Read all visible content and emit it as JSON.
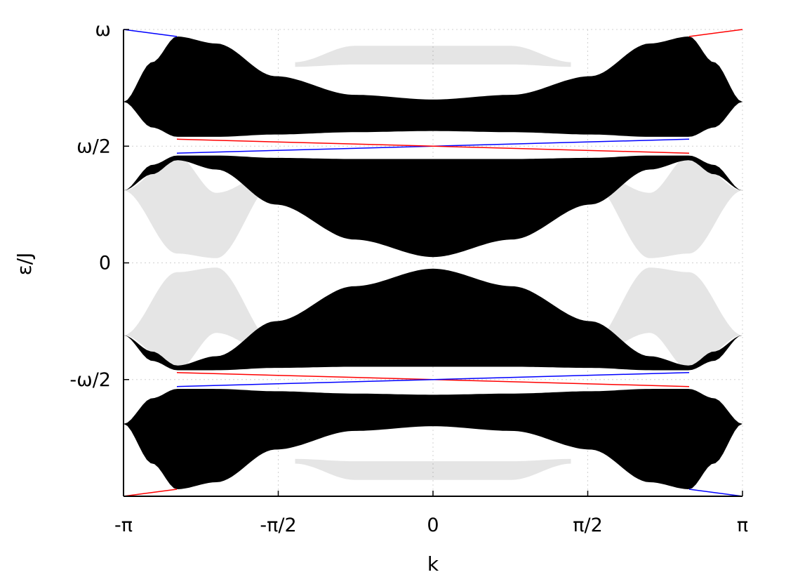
{
  "chart_data": {
    "type": "line",
    "title": "",
    "xlabel": "k",
    "ylabel": "ε/J",
    "xlim": [
      -3.14159,
      3.14159
    ],
    "ylim": [
      -1,
      1
    ],
    "x_unit_note": "",
    "grid": true,
    "x_ticks": [
      {
        "value": -3.14159,
        "label": "-π"
      },
      {
        "value": -1.5708,
        "label": "-π/2"
      },
      {
        "value": 0,
        "label": "0"
      },
      {
        "value": 1.5708,
        "label": "π/2"
      },
      {
        "value": 3.14159,
        "label": "π"
      }
    ],
    "y_ticks": [
      {
        "value": 1,
        "label": "ω"
      },
      {
        "value": 0.5,
        "label": "ω/2"
      },
      {
        "value": 0,
        "label": "0"
      },
      {
        "value": -0.5,
        "label": "-ω/2"
      }
    ],
    "colors": {
      "bulk": "#000000",
      "edge_red": "#ff0000",
      "edge_blue": "#0000ff",
      "grid": "#d0d0d0"
    },
    "bulk_bands": [
      {
        "id": "upper",
        "k": [
          -3.14159,
          -2.85,
          -2.6,
          -2.2,
          -1.6,
          -0.8,
          0,
          0.8,
          1.6,
          2.2,
          2.6,
          2.85,
          3.14159
        ],
        "top": [
          0.69,
          0.86,
          0.97,
          0.94,
          0.8,
          0.72,
          0.7,
          0.72,
          0.8,
          0.94,
          0.97,
          0.86,
          0.69
        ],
        "bottom": [
          0.69,
          0.58,
          0.54,
          0.54,
          0.55,
          0.56,
          0.565,
          0.56,
          0.55,
          0.54,
          0.54,
          0.58,
          0.69
        ]
      },
      {
        "id": "upper-middle",
        "k": [
          -3.14159,
          -2.85,
          -2.6,
          -2.2,
          -1.6,
          -0.8,
          0,
          0.8,
          1.6,
          2.2,
          2.6,
          2.85,
          3.14159
        ],
        "top": [
          0.31,
          0.42,
          0.46,
          0.46,
          0.45,
          0.445,
          0.445,
          0.445,
          0.45,
          0.46,
          0.46,
          0.42,
          0.31
        ],
        "bottom": [
          0.31,
          0.38,
          0.44,
          0.4,
          0.25,
          0.1,
          0.025,
          0.1,
          0.25,
          0.4,
          0.44,
          0.38,
          0.31
        ]
      },
      {
        "id": "lower-middle",
        "k": [
          -3.14159,
          -2.85,
          -2.6,
          -2.2,
          -1.6,
          -0.8,
          0,
          0.8,
          1.6,
          2.2,
          2.6,
          2.85,
          3.14159
        ],
        "top": [
          -0.31,
          -0.38,
          -0.44,
          -0.4,
          -0.25,
          -0.1,
          -0.025,
          -0.1,
          -0.25,
          -0.4,
          -0.44,
          -0.38,
          -0.31
        ],
        "bottom": [
          -0.31,
          -0.42,
          -0.46,
          -0.46,
          -0.45,
          -0.445,
          -0.445,
          -0.445,
          -0.45,
          -0.46,
          -0.46,
          -0.42,
          -0.31
        ]
      },
      {
        "id": "lower",
        "k": [
          -3.14159,
          -2.85,
          -2.6,
          -2.2,
          -1.6,
          -0.8,
          0,
          0.8,
          1.6,
          2.2,
          2.6,
          2.85,
          3.14159
        ],
        "top": [
          -0.69,
          -0.58,
          -0.54,
          -0.54,
          -0.55,
          -0.56,
          -0.565,
          -0.56,
          -0.55,
          -0.54,
          -0.54,
          -0.58,
          -0.69
        ],
        "bottom": [
          -0.69,
          -0.86,
          -0.97,
          -0.94,
          -0.8,
          -0.72,
          -0.7,
          -0.72,
          -0.8,
          -0.94,
          -0.97,
          -0.86,
          -0.69
        ]
      }
    ],
    "faint_lobes": [
      {
        "k": [
          -3.14159,
          -2.6,
          -2.2,
          -1.6
        ],
        "top": [
          0.31,
          0.46,
          0.3,
          0.4
        ],
        "bottom": [
          0.31,
          0.04,
          0.02,
          0.35
        ]
      },
      {
        "k": [
          1.6,
          2.2,
          2.6,
          3.14159
        ],
        "top": [
          0.4,
          0.3,
          0.46,
          0.31
        ],
        "bottom": [
          0.35,
          0.02,
          0.04,
          0.31
        ]
      },
      {
        "k": [
          -3.14159,
          -2.6,
          -2.2,
          -1.6
        ],
        "top": [
          -0.31,
          -0.04,
          -0.02,
          -0.35
        ],
        "bottom": [
          -0.31,
          -0.46,
          -0.3,
          -0.4
        ]
      },
      {
        "k": [
          1.6,
          2.2,
          2.6,
          3.14159
        ],
        "top": [
          -0.35,
          -0.02,
          -0.04,
          -0.31
        ],
        "bottom": [
          -0.4,
          -0.3,
          -0.46,
          -0.31
        ]
      },
      {
        "k": [
          -1.4,
          -0.8,
          0,
          0.8,
          1.4
        ],
        "top": [
          0.86,
          0.93,
          0.93,
          0.93,
          0.86
        ],
        "bottom": [
          0.84,
          0.85,
          0.85,
          0.85,
          0.84
        ]
      },
      {
        "k": [
          -1.4,
          -0.8,
          0,
          0.8,
          1.4
        ],
        "top": [
          -0.84,
          -0.85,
          -0.85,
          -0.85,
          -0.84
        ],
        "bottom": [
          -0.86,
          -0.93,
          -0.93,
          -0.93,
          -0.86
        ]
      }
    ],
    "edge_states": [
      {
        "color": "blue",
        "x": [
          -3.14159,
          -2.6
        ],
        "y": [
          1.0,
          0.97
        ]
      },
      {
        "color": "red",
        "x": [
          2.6,
          3.14159
        ],
        "y": [
          0.97,
          1.0
        ]
      },
      {
        "color": "red",
        "x": [
          -3.14159,
          -2.6
        ],
        "y": [
          -1.0,
          -0.97
        ]
      },
      {
        "color": "blue",
        "x": [
          2.6,
          3.14159
        ],
        "y": [
          -0.97,
          -1.0
        ]
      },
      {
        "color": "blue",
        "x": [
          -2.6,
          2.6
        ],
        "y": [
          0.47,
          0.53
        ]
      },
      {
        "color": "red",
        "x": [
          -2.6,
          2.6
        ],
        "y": [
          0.53,
          0.47
        ]
      },
      {
        "color": "red",
        "x": [
          -2.6,
          2.6
        ],
        "y": [
          -0.47,
          -0.53
        ]
      },
      {
        "color": "blue",
        "x": [
          -2.6,
          2.6
        ],
        "y": [
          -0.53,
          -0.47
        ]
      }
    ]
  }
}
